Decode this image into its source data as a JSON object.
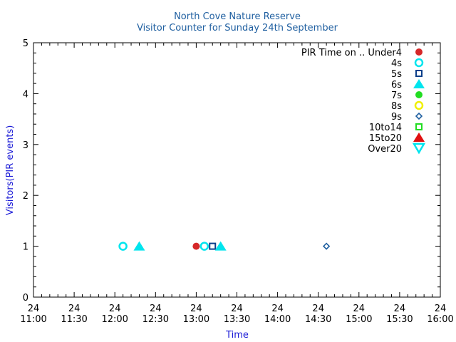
{
  "chart_data": {
    "type": "scatter",
    "title": [
      "North Cove Nature Reserve",
      "Visitor Counter for Sunday 24th September"
    ],
    "xlabel": "Time",
    "ylabel": "Visitors(PIR events)",
    "xlim": [
      "11:00",
      "16:00"
    ],
    "ylim": [
      0,
      5
    ],
    "x_ticks": [
      {
        "day": "24",
        "time": "11:00"
      },
      {
        "day": "24",
        "time": "11:30"
      },
      {
        "day": "24",
        "time": "12:00"
      },
      {
        "day": "24",
        "time": "12:30"
      },
      {
        "day": "24",
        "time": "13:00"
      },
      {
        "day": "24",
        "time": "13:30"
      },
      {
        "day": "24",
        "time": "14:00"
      },
      {
        "day": "24",
        "time": "14:30"
      },
      {
        "day": "24",
        "time": "15:00"
      },
      {
        "day": "24",
        "time": "15:30"
      },
      {
        "day": "24",
        "time": "16:00"
      }
    ],
    "y_ticks": [
      0,
      1,
      2,
      3,
      4,
      5
    ],
    "legend_position": "top-right",
    "grid": false,
    "series": [
      {
        "name": "PIR Time on .. Under4",
        "marker": "filled-circle",
        "color": "#d62728",
        "points": [
          {
            "x": "13:00",
            "y": 1
          }
        ]
      },
      {
        "name": "4s",
        "marker": "open-circle",
        "color": "#00e5ee",
        "points": [
          {
            "x": "12:06",
            "y": 1
          },
          {
            "x": "13:06",
            "y": 1
          }
        ]
      },
      {
        "name": "5s",
        "marker": "open-square",
        "color": "#0b3f8a",
        "points": [
          {
            "x": "13:12",
            "y": 1
          }
        ]
      },
      {
        "name": "6s",
        "marker": "filled-triangle",
        "color": "#00e5ee",
        "points": [
          {
            "x": "12:18",
            "y": 1
          },
          {
            "x": "13:18",
            "y": 1
          }
        ]
      },
      {
        "name": "7s",
        "marker": "filled-circle",
        "color": "#22dd22",
        "points": []
      },
      {
        "name": "8s",
        "marker": "open-circle",
        "color": "#f0f000",
        "points": []
      },
      {
        "name": "9s",
        "marker": "open-diamond",
        "color": "#1f5fa0",
        "points": [
          {
            "x": "14:36",
            "y": 1
          }
        ]
      },
      {
        "name": "10to14",
        "marker": "open-square",
        "color": "#22dd22",
        "points": []
      },
      {
        "name": "15to20",
        "marker": "filled-triangle",
        "color": "#e01010",
        "points": []
      },
      {
        "name": "Over20",
        "marker": "open-triangle-down",
        "color": "#00e5ee",
        "points": []
      }
    ]
  }
}
